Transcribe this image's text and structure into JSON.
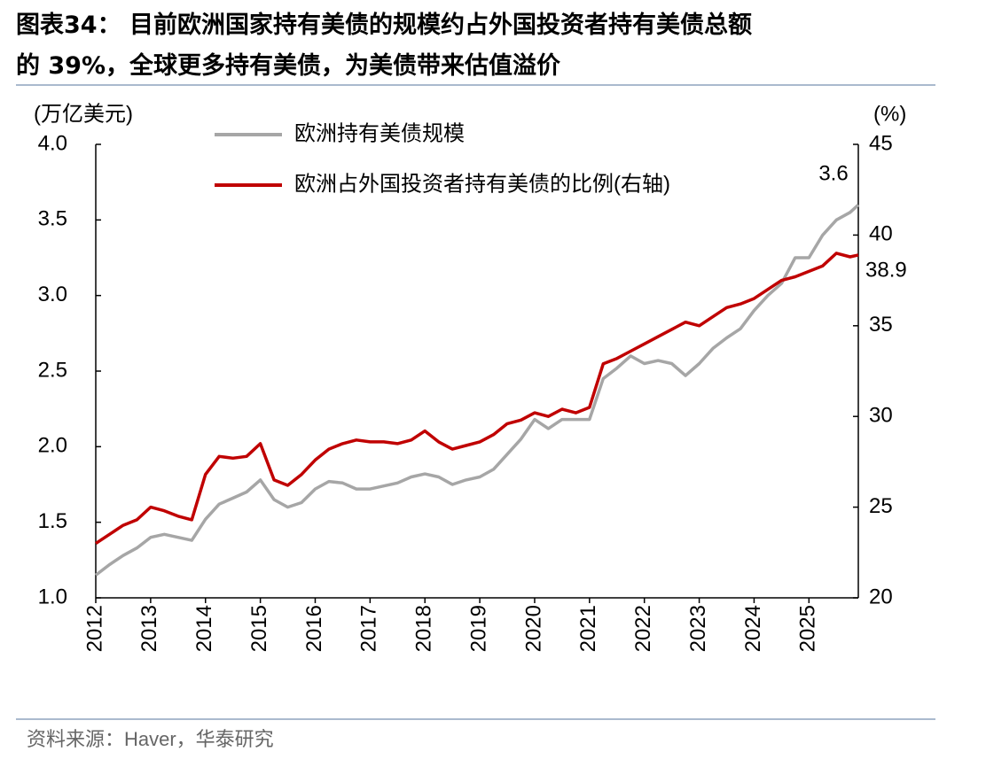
{
  "chart_data": {
    "type": "line",
    "title": [
      "图表34：  目前欧洲国家持有美债的规模约占外国投资者持有美债总额",
      "的 39%，全球更多持有美债，为美债带来估值溢价"
    ],
    "ylabel": "(万亿美元)",
    "y2label": "(%)",
    "source": "资料来源：Haver，华泰研究",
    "x": [
      2012,
      2012.25,
      2012.5,
      2012.75,
      2013,
      2013.25,
      2013.5,
      2013.75,
      2014,
      2014.25,
      2014.5,
      2014.75,
      2015,
      2015.25,
      2015.5,
      2015.75,
      2016,
      2016.25,
      2016.5,
      2016.75,
      2017,
      2017.25,
      2017.5,
      2017.75,
      2018,
      2018.25,
      2018.5,
      2018.75,
      2019,
      2019.25,
      2019.5,
      2019.75,
      2020,
      2020.25,
      2020.5,
      2020.75,
      2021,
      2021.25,
      2021.5,
      2021.75,
      2022,
      2022.25,
      2022.5,
      2022.75,
      2023,
      2023.25,
      2023.5,
      2023.75,
      2024,
      2024.25,
      2024.5,
      2024.75,
      2025,
      2025.25,
      2025.5,
      2025.75,
      2025.9
    ],
    "series": [
      {
        "name": "欧洲持有美债规模",
        "color": "#a6a6a6",
        "axis": "y",
        "values": [
          1.15,
          1.22,
          1.28,
          1.33,
          1.4,
          1.42,
          1.4,
          1.38,
          1.52,
          1.62,
          1.66,
          1.7,
          1.78,
          1.65,
          1.6,
          1.63,
          1.72,
          1.77,
          1.76,
          1.72,
          1.72,
          1.74,
          1.76,
          1.8,
          1.82,
          1.8,
          1.75,
          1.78,
          1.8,
          1.85,
          1.95,
          2.05,
          2.18,
          2.12,
          2.18,
          2.18,
          2.18,
          2.45,
          2.52,
          2.6,
          2.55,
          2.57,
          2.55,
          2.47,
          2.55,
          2.65,
          2.72,
          2.78,
          2.9,
          3.0,
          3.08,
          3.25,
          3.25,
          3.4,
          3.5,
          3.55,
          3.6
        ]
      },
      {
        "name": "欧洲占外国投资者持有美债的比例(右轴)",
        "color": "#c00000",
        "axis": "y2",
        "values": [
          23.0,
          23.5,
          24.0,
          24.3,
          25.0,
          24.8,
          24.5,
          24.3,
          26.8,
          27.8,
          27.7,
          27.8,
          28.5,
          26.5,
          26.2,
          26.8,
          27.6,
          28.2,
          28.5,
          28.7,
          28.6,
          28.6,
          28.5,
          28.7,
          29.2,
          28.6,
          28.2,
          28.4,
          28.6,
          29.0,
          29.6,
          29.8,
          30.2,
          30.0,
          30.4,
          30.2,
          30.5,
          32.9,
          33.2,
          33.6,
          34.0,
          34.4,
          34.8,
          35.2,
          35.0,
          35.5,
          36.0,
          36.2,
          36.5,
          37.0,
          37.5,
          37.7,
          38.0,
          38.3,
          39.0,
          38.8,
          38.9
        ]
      }
    ],
    "xlim": [
      2012,
      2025.9
    ],
    "xticks": [
      2012,
      2013,
      2014,
      2015,
      2016,
      2017,
      2018,
      2019,
      2020,
      2021,
      2022,
      2023,
      2024,
      2025
    ],
    "ylim": [
      1.0,
      4.0
    ],
    "yticks": [
      {
        "value": 1.0,
        "label": "1.0"
      },
      1.5,
      {
        "value": 2.0,
        "label": "2.0"
      },
      2.5,
      {
        "value": 3.0,
        "label": "3.0"
      },
      3.5,
      {
        "value": 4.0,
        "label": "4.0"
      }
    ],
    "y2lim": [
      20,
      45
    ],
    "y2ticks": [
      20,
      25,
      30,
      35,
      40,
      45
    ],
    "grid": false,
    "legend": "upper left"
  }
}
